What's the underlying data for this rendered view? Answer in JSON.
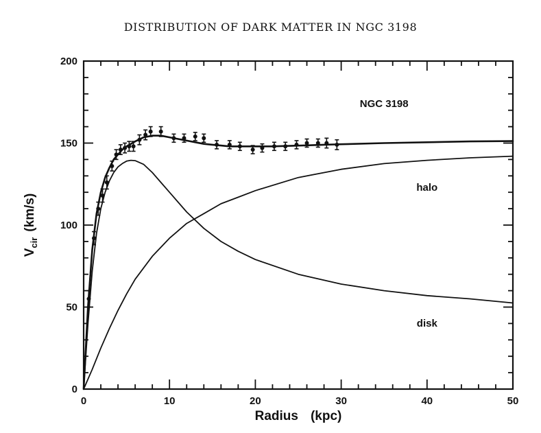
{
  "chart_data": {
    "type": "line",
    "title": "DISTRIBUTION OF DARK MATTER IN NGC 3198",
    "xlabel": "Radius",
    "xlabel_unit": "(kpc)",
    "ylabel_main": "V",
    "ylabel_sub": "cir",
    "ylabel_unit": "(km/s)",
    "xlim": [
      0,
      50
    ],
    "ylim": [
      0,
      200
    ],
    "x_ticks": [
      0,
      10,
      20,
      30,
      40,
      50
    ],
    "y_ticks": [
      0,
      50,
      100,
      150,
      200
    ],
    "annotations": [
      {
        "text": "NGC 3198",
        "x": 35,
        "y": 172
      },
      {
        "text": "halo",
        "x": 40,
        "y": 121
      },
      {
        "text": "disk",
        "x": 40,
        "y": 38
      }
    ],
    "series": [
      {
        "role": "total",
        "x": [
          0,
          0.5,
          1,
          1.5,
          2,
          2.5,
          3,
          3.5,
          4,
          4.5,
          5,
          6,
          7,
          8,
          9,
          10,
          11,
          12,
          13,
          14,
          15,
          16,
          17,
          18,
          19,
          20,
          22,
          24,
          26,
          28,
          30,
          35,
          40,
          45,
          50
        ],
        "y": [
          0,
          50,
          85,
          107,
          120,
          129,
          135,
          140,
          143,
          146,
          148,
          151,
          153.5,
          154.5,
          154.5,
          153.5,
          152.5,
          151.5,
          150.5,
          149.5,
          149,
          148.5,
          148,
          148,
          148,
          148,
          148,
          148.3,
          148.6,
          149,
          149.3,
          150,
          150.5,
          151,
          151.2
        ]
      },
      {
        "role": "disk",
        "x": [
          0,
          0.5,
          1,
          1.5,
          2,
          2.5,
          3,
          3.5,
          4,
          4.5,
          5,
          5.5,
          6,
          7,
          8,
          9,
          10,
          12,
          14,
          16,
          18,
          20,
          25,
          30,
          35,
          40,
          45,
          50
        ],
        "y": [
          0,
          40,
          72,
          95,
          110,
          120,
          127,
          132,
          135.5,
          137.5,
          139,
          139.5,
          139.3,
          137,
          132,
          126,
          120,
          108,
          98,
          90,
          84,
          79,
          70,
          64,
          60,
          57,
          55,
          52.5
        ]
      },
      {
        "role": "halo",
        "x": [
          0,
          1,
          2,
          3,
          4,
          5,
          6,
          8,
          10,
          12,
          14,
          16,
          18,
          20,
          25,
          30,
          35,
          40,
          45,
          50
        ],
        "y": [
          0,
          12,
          25,
          37,
          48,
          58,
          67,
          81,
          92,
          101,
          107,
          113,
          117,
          121,
          129,
          134,
          137.5,
          139.5,
          141,
          142
        ]
      }
    ],
    "observations": {
      "x": [
        0.6,
        1.2,
        1.7,
        2.2,
        2.7,
        3.3,
        3.8,
        4.3,
        4.8,
        5.3,
        5.8,
        6.5,
        7.2,
        7.8,
        9.0,
        10.5,
        11.7,
        13.0,
        14.0,
        15.5,
        17.0,
        18.2,
        19.7,
        20.8,
        22.2,
        23.5,
        24.8,
        26.0,
        27.3,
        28.3,
        29.5
      ],
      "y": [
        55,
        92,
        110,
        118,
        126,
        136,
        143,
        146,
        147,
        148,
        148,
        152,
        155,
        157,
        157,
        153,
        153,
        154,
        153,
        149,
        149,
        148,
        146,
        147,
        148,
        148,
        149,
        150,
        150,
        150,
        149
      ],
      "err": [
        5,
        4,
        4,
        4,
        4,
        3,
        3,
        3,
        3,
        3,
        3,
        3,
        3,
        3,
        3,
        2.5,
        2.5,
        2.5,
        2.5,
        2.5,
        2.5,
        2.5,
        2.5,
        2.5,
        2.5,
        2.5,
        2.5,
        2.5,
        2.5,
        3,
        3
      ]
    }
  }
}
